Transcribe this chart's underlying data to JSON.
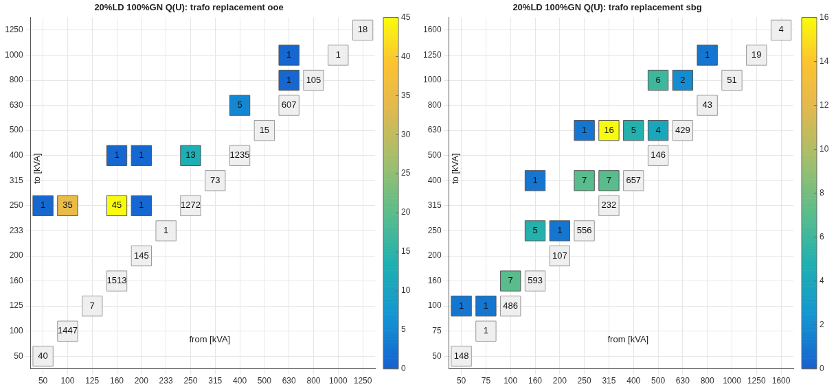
{
  "chart_data": [
    {
      "type": "heatmap",
      "title": "20%LD 100%GN Q(U): trafo replacement ooe",
      "xlabel": "from [kVA]",
      "ylabel": "to [kVA]",
      "categories": [
        "50",
        "100",
        "125",
        "160",
        "200",
        "233",
        "250",
        "315",
        "400",
        "500",
        "630",
        "800",
        "1000",
        "1250"
      ],
      "y_categories": [
        "1250",
        "1000",
        "800",
        "630",
        "500",
        "400",
        "315",
        "250",
        "233",
        "200",
        "160",
        "125",
        "100",
        "50"
      ],
      "cells": [
        [
          null,
          null,
          null,
          null,
          null,
          null,
          null,
          null,
          null,
          null,
          null,
          null,
          null,
          null
        ],
        [
          null,
          null,
          null,
          null,
          null,
          null,
          null,
          null,
          null,
          null,
          1,
          null,
          null,
          null
        ],
        [
          null,
          null,
          null,
          null,
          null,
          null,
          null,
          null,
          null,
          null,
          1,
          null,
          null,
          null
        ],
        [
          null,
          null,
          null,
          null,
          null,
          null,
          null,
          null,
          5,
          null,
          null,
          null,
          null,
          null
        ],
        [
          null,
          null,
          null,
          null,
          null,
          null,
          null,
          null,
          null,
          null,
          null,
          null,
          null,
          null
        ],
        [
          null,
          null,
          null,
          1,
          1,
          null,
          13,
          null,
          null,
          null,
          null,
          null,
          null,
          null
        ],
        [
          null,
          null,
          null,
          null,
          null,
          null,
          null,
          null,
          null,
          null,
          null,
          null,
          null,
          null
        ],
        [
          1,
          35,
          null,
          45,
          1,
          null,
          null,
          null,
          null,
          null,
          null,
          null,
          null,
          null
        ],
        [
          null,
          null,
          null,
          null,
          null,
          null,
          null,
          null,
          null,
          null,
          null,
          null,
          null,
          null
        ],
        [
          null,
          null,
          null,
          null,
          null,
          null,
          null,
          null,
          null,
          null,
          null,
          null,
          null,
          null
        ],
        [
          null,
          null,
          null,
          null,
          null,
          null,
          null,
          null,
          null,
          null,
          null,
          null,
          null,
          null
        ],
        [
          null,
          null,
          null,
          null,
          null,
          null,
          null,
          null,
          null,
          null,
          null,
          null,
          null,
          null
        ],
        [
          null,
          null,
          null,
          null,
          null,
          null,
          null,
          null,
          null,
          null,
          null,
          null,
          null,
          null
        ],
        [
          null,
          null,
          null,
          null,
          null,
          null,
          null,
          null,
          null,
          null,
          null,
          null,
          null,
          null
        ]
      ],
      "clim": [
        0,
        45
      ],
      "cticks": [
        0,
        5,
        10,
        15,
        20,
        25,
        30,
        35,
        40,
        45
      ],
      "grid": true,
      "data_labels": true,
      "annotations": [
        {
          "text": "40",
          "x": "50",
          "y": "50"
        },
        {
          "text": "1447",
          "x": "100",
          "y": "100"
        },
        {
          "text": "7",
          "x": "125",
          "y": "125"
        },
        {
          "text": "1513",
          "x": "160",
          "y": "160"
        },
        {
          "text": "145",
          "x": "200",
          "y": "200"
        },
        {
          "text": "1",
          "x": "233",
          "y": "233"
        },
        {
          "text": "1272",
          "x": "250",
          "y": "250"
        },
        {
          "text": "73",
          "x": "315",
          "y": "315"
        },
        {
          "text": "1235",
          "x": "400",
          "y": "400"
        },
        {
          "text": "15",
          "x": "500",
          "y": "500"
        },
        {
          "text": "607",
          "x": "630",
          "y": "630"
        },
        {
          "text": "105",
          "x": "800",
          "y": "800"
        },
        {
          "text": "1",
          "x": "1000",
          "y": "1000"
        },
        {
          "text": "18",
          "x": "1250",
          "y": "1250"
        }
      ]
    },
    {
      "type": "heatmap",
      "title": "20%LD 100%GN Q(U): trafo replacement sbg",
      "xlabel": "from [kVA]",
      "ylabel": "to [kVA]",
      "categories": [
        "50",
        "75",
        "100",
        "160",
        "200",
        "250",
        "315",
        "400",
        "500",
        "630",
        "800",
        "1000",
        "1250",
        "1600"
      ],
      "y_categories": [
        "1600",
        "1250",
        "1000",
        "800",
        "630",
        "500",
        "400",
        "315",
        "250",
        "200",
        "160",
        "100",
        "75",
        "50"
      ],
      "cells": [
        [
          null,
          null,
          null,
          null,
          null,
          null,
          null,
          null,
          null,
          null,
          null,
          null,
          null,
          null
        ],
        [
          null,
          null,
          null,
          null,
          null,
          null,
          null,
          null,
          null,
          null,
          1,
          null,
          null,
          null
        ],
        [
          null,
          null,
          null,
          null,
          null,
          null,
          null,
          null,
          6,
          2,
          null,
          null,
          null,
          null
        ],
        [
          null,
          null,
          null,
          null,
          null,
          null,
          null,
          null,
          null,
          null,
          null,
          null,
          null,
          null
        ],
        [
          null,
          null,
          null,
          null,
          null,
          1,
          16,
          5,
          4,
          null,
          null,
          null,
          null,
          null
        ],
        [
          null,
          null,
          null,
          null,
          null,
          null,
          null,
          null,
          null,
          null,
          null,
          null,
          null,
          null
        ],
        [
          null,
          null,
          null,
          1,
          null,
          7,
          7,
          null,
          null,
          null,
          null,
          null,
          null,
          null
        ],
        [
          null,
          null,
          null,
          null,
          null,
          null,
          null,
          null,
          null,
          null,
          null,
          null,
          null,
          null
        ],
        [
          null,
          null,
          null,
          5,
          1,
          null,
          null,
          null,
          null,
          null,
          null,
          null,
          null,
          null
        ],
        [
          null,
          null,
          null,
          null,
          null,
          null,
          null,
          null,
          null,
          null,
          null,
          null,
          null,
          null
        ],
        [
          null,
          null,
          7,
          null,
          null,
          null,
          null,
          null,
          null,
          null,
          null,
          null,
          null,
          null
        ],
        [
          1,
          1,
          null,
          null,
          null,
          null,
          null,
          null,
          null,
          null,
          null,
          null,
          null,
          null
        ],
        [
          null,
          null,
          null,
          null,
          null,
          null,
          null,
          null,
          null,
          null,
          null,
          null,
          null,
          null
        ],
        [
          null,
          null,
          null,
          null,
          null,
          null,
          null,
          null,
          null,
          null,
          null,
          null,
          null,
          null
        ]
      ],
      "clim": [
        0,
        16
      ],
      "cticks": [
        0,
        2,
        4,
        6,
        8,
        10,
        12,
        14,
        16
      ],
      "grid": true,
      "data_labels": true,
      "annotations": [
        {
          "text": "148",
          "x": "50",
          "y": "50"
        },
        {
          "text": "1",
          "x": "75",
          "y": "75"
        },
        {
          "text": "486",
          "x": "100",
          "y": "100"
        },
        {
          "text": "593",
          "x": "160",
          "y": "160"
        },
        {
          "text": "107",
          "x": "200",
          "y": "200"
        },
        {
          "text": "556",
          "x": "250",
          "y": "250"
        },
        {
          "text": "232",
          "x": "315",
          "y": "315"
        },
        {
          "text": "657",
          "x": "400",
          "y": "400"
        },
        {
          "text": "146",
          "x": "500",
          "y": "500"
        },
        {
          "text": "429",
          "x": "630",
          "y": "630"
        },
        {
          "text": "43",
          "x": "800",
          "y": "800"
        },
        {
          "text": "51",
          "x": "1000",
          "y": "1000"
        },
        {
          "text": "19",
          "x": "1250",
          "y": "1250"
        },
        {
          "text": "4",
          "x": "1600",
          "y": "1600"
        }
      ]
    }
  ]
}
